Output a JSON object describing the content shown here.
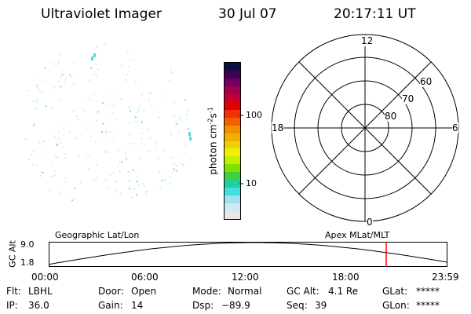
{
  "header": {
    "instrument": "Ultraviolet Imager",
    "date": "30 Jul 07",
    "time": "20:17:11 UT"
  },
  "colorbar": {
    "unit_label": "photon cm",
    "unit_exp1": "-2",
    "unit_mid": "s",
    "unit_exp2": "-1",
    "ticks": [
      "100",
      "10"
    ],
    "colors": [
      "#e8e8e8",
      "#d0e8f0",
      "#a0e0f0",
      "#40e0e0",
      "#20d0a0",
      "#40d040",
      "#80e000",
      "#c0f000",
      "#f0f000",
      "#f0d000",
      "#f0b000",
      "#f09000",
      "#f06000",
      "#f03000",
      "#e00000",
      "#c00030",
      "#a00050",
      "#700060",
      "#400050",
      "#101040"
    ]
  },
  "polar": {
    "mlt_labels": {
      "top": "12",
      "left": "18",
      "right": "6",
      "bottom": "0"
    },
    "lat_labels": [
      "60",
      "70",
      "80"
    ]
  },
  "timeline": {
    "left_title": "Geographic Lat/Lon",
    "right_title": "Apex MLat/MLT",
    "ylabel": "GC Alt",
    "y_ticks": [
      "9.0",
      "1.8"
    ],
    "x_ticks": [
      "00:00",
      "06:00",
      "12:00",
      "18:00",
      "23:59"
    ],
    "marker_color": "#ff0000"
  },
  "status": {
    "filter_label": "Flt:",
    "filter": "LBHL",
    "ip_label": "IP:",
    "ip": "36.0",
    "door_label": "Door:",
    "door": "Open",
    "gain_label": "Gain:",
    "gain": "14",
    "mode_label": "Mode:",
    "mode": "Normal",
    "dsp_label": "Dsp:",
    "dsp": "−89.9",
    "gcalt_label": "GC Alt:",
    "gcalt": "4.1 Re",
    "seq_label": "Seq:",
    "seq": "39",
    "glat_label": "GLat:",
    "glat": "*****",
    "glon_label": "GLon:",
    "glon": "*****"
  }
}
